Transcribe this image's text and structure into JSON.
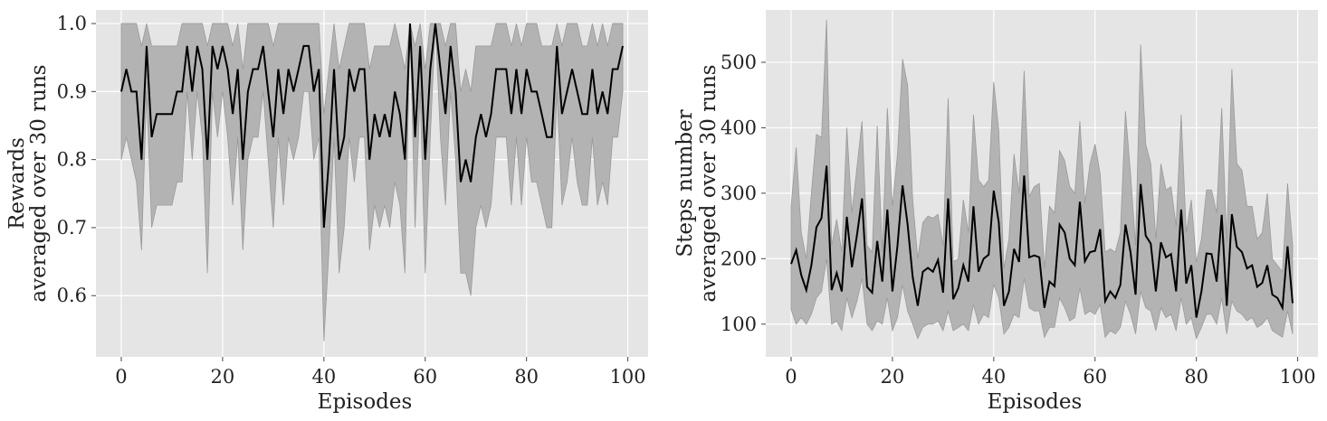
{
  "chart_data": [
    {
      "type": "line",
      "xlabel": "Episodes",
      "ylabel_lines": [
        "Rewards",
        "averaged over 30 runs"
      ],
      "xlim": [
        -5,
        104
      ],
      "ylim": [
        0.51,
        1.02
      ],
      "xticks": [
        0,
        20,
        40,
        60,
        80,
        100
      ],
      "yticks": [
        0.6,
        0.7,
        0.8,
        0.9,
        1.0
      ],
      "ytick_labels": [
        "0.6",
        "0.7",
        "0.8",
        "0.9",
        "1.0"
      ],
      "grid": true,
      "series": [
        {
          "x": [
            0,
            1,
            2,
            3,
            4,
            5,
            6,
            7,
            8,
            9,
            10,
            11,
            12,
            13,
            14,
            15,
            16,
            17,
            18,
            19,
            20,
            21,
            22,
            23,
            24,
            25,
            26,
            27,
            28,
            29,
            30,
            31,
            32,
            33,
            34,
            35,
            36,
            37,
            38,
            39,
            40,
            41,
            42,
            43,
            44,
            45,
            46,
            47,
            48,
            49,
            50,
            51,
            52,
            53,
            54,
            55,
            56,
            57,
            58,
            59,
            60,
            61,
            62,
            63,
            64,
            65,
            66,
            67,
            68,
            69,
            70,
            71,
            72,
            73,
            74,
            75,
            76,
            77,
            78,
            79,
            80,
            81,
            82,
            83,
            84,
            85,
            86,
            87,
            88,
            89,
            90,
            91,
            92,
            93,
            94,
            95,
            96,
            97,
            98,
            99
          ],
          "mean": [
            0.9,
            0.933,
            0.9,
            0.9,
            0.8,
            0.967,
            0.833,
            0.867,
            0.867,
            0.867,
            0.867,
            0.9,
            0.9,
            0.967,
            0.9,
            0.967,
            0.933,
            0.8,
            0.967,
            0.933,
            0.967,
            0.933,
            0.867,
            0.933,
            0.8,
            0.9,
            0.933,
            0.933,
            0.967,
            0.9,
            0.833,
            0.933,
            0.867,
            0.933,
            0.9,
            0.933,
            0.967,
            0.967,
            0.9,
            0.933,
            0.7,
            0.8,
            0.933,
            0.8,
            0.833,
            0.933,
            0.9,
            0.933,
            0.933,
            0.8,
            0.867,
            0.833,
            0.867,
            0.833,
            0.9,
            0.867,
            0.8,
            1.0,
            0.833,
            0.967,
            0.8,
            0.933,
            1.0,
            0.933,
            0.867,
            0.967,
            0.9,
            0.767,
            0.8,
            0.767,
            0.833,
            0.867,
            0.833,
            0.867,
            0.933,
            0.933,
            0.933,
            0.867,
            0.933,
            0.867,
            0.933,
            0.9,
            0.9,
            0.867,
            0.833,
            0.833,
            0.967,
            0.867,
            0.9,
            0.933,
            0.9,
            0.867,
            0.867,
            0.933,
            0.867,
            0.9,
            0.867,
            0.933,
            0.933,
            0.967
          ],
          "upper": [
            1.0,
            1.0,
            1.0,
            1.0,
            0.967,
            1.0,
            0.967,
            0.967,
            0.967,
            0.967,
            0.967,
            0.967,
            1.0,
            1.0,
            1.0,
            1.0,
            1.0,
            0.967,
            1.0,
            1.0,
            1.0,
            1.0,
            0.967,
            1.0,
            0.933,
            1.0,
            1.0,
            1.0,
            1.0,
            1.0,
            0.967,
            1.0,
            1.0,
            1.0,
            1.0,
            1.0,
            1.0,
            1.0,
            1.0,
            1.0,
            0.867,
            0.933,
            1.0,
            0.933,
            0.967,
            1.0,
            1.0,
            1.0,
            1.0,
            0.933,
            0.967,
            0.967,
            0.967,
            0.967,
            1.0,
            0.967,
            0.933,
            1.0,
            0.967,
            1.0,
            0.933,
            1.0,
            1.0,
            1.0,
            0.967,
            1.0,
            1.0,
            0.9,
            0.933,
            0.9,
            0.967,
            0.967,
            0.967,
            0.967,
            1.0,
            1.0,
            1.0,
            0.967,
            1.0,
            0.967,
            1.0,
            1.0,
            1.0,
            0.967,
            0.967,
            0.967,
            1.0,
            0.967,
            1.0,
            1.0,
            1.0,
            0.967,
            0.967,
            1.0,
            0.967,
            1.0,
            0.967,
            1.0,
            1.0,
            1.0
          ],
          "lower": [
            0.8,
            0.833,
            0.8,
            0.767,
            0.667,
            0.9,
            0.7,
            0.733,
            0.733,
            0.733,
            0.733,
            0.767,
            0.767,
            0.9,
            0.8,
            0.9,
            0.833,
            0.633,
            0.9,
            0.833,
            0.9,
            0.833,
            0.733,
            0.833,
            0.667,
            0.8,
            0.833,
            0.833,
            0.9,
            0.8,
            0.7,
            0.833,
            0.733,
            0.833,
            0.8,
            0.833,
            0.9,
            0.9,
            0.8,
            0.833,
            0.533,
            0.667,
            0.833,
            0.633,
            0.7,
            0.833,
            0.767,
            0.833,
            0.833,
            0.667,
            0.733,
            0.7,
            0.733,
            0.7,
            0.767,
            0.733,
            0.633,
            1.0,
            0.7,
            0.9,
            0.633,
            0.833,
            1.0,
            0.833,
            0.733,
            0.9,
            0.8,
            0.633,
            0.633,
            0.6,
            0.7,
            0.733,
            0.7,
            0.733,
            0.833,
            0.833,
            0.833,
            0.733,
            0.833,
            0.733,
            0.833,
            0.767,
            0.767,
            0.733,
            0.7,
            0.7,
            0.9,
            0.733,
            0.767,
            0.833,
            0.767,
            0.733,
            0.733,
            0.833,
            0.733,
            0.767,
            0.733,
            0.833,
            0.833,
            0.9
          ]
        }
      ]
    },
    {
      "type": "line",
      "xlabel": "Episodes",
      "ylabel_lines": [
        "Steps number",
        "averaged over 30 runs"
      ],
      "xlim": [
        -5,
        104
      ],
      "ylim": [
        50,
        580
      ],
      "xticks": [
        0,
        20,
        40,
        60,
        80,
        100
      ],
      "yticks": [
        100,
        200,
        300,
        400,
        500
      ],
      "ytick_labels": [
        "100",
        "200",
        "300",
        "400",
        "500"
      ],
      "grid": true,
      "series": [
        {
          "x": [
            0,
            1,
            2,
            3,
            4,
            5,
            6,
            7,
            8,
            9,
            10,
            11,
            12,
            13,
            14,
            15,
            16,
            17,
            18,
            19,
            20,
            21,
            22,
            23,
            24,
            25,
            26,
            27,
            28,
            29,
            30,
            31,
            32,
            33,
            34,
            35,
            36,
            37,
            38,
            39,
            40,
            41,
            42,
            43,
            44,
            45,
            46,
            47,
            48,
            49,
            50,
            51,
            52,
            53,
            54,
            55,
            56,
            57,
            58,
            59,
            60,
            61,
            62,
            63,
            64,
            65,
            66,
            67,
            68,
            69,
            70,
            71,
            72,
            73,
            74,
            75,
            76,
            77,
            78,
            79,
            80,
            81,
            82,
            83,
            84,
            85,
            86,
            87,
            88,
            89,
            90,
            91,
            92,
            93,
            94,
            95,
            96,
            97,
            98,
            99
          ],
          "mean": [
            192,
            213,
            175,
            152,
            190,
            248,
            262,
            342,
            152,
            178,
            150,
            264,
            187,
            236,
            292,
            157,
            148,
            227,
            165,
            275,
            150,
            220,
            312,
            252,
            172,
            128,
            180,
            186,
            180,
            198,
            148,
            292,
            138,
            155,
            190,
            165,
            280,
            180,
            200,
            206,
            304,
            255,
            128,
            150,
            215,
            195,
            327,
            202,
            205,
            202,
            125,
            165,
            158,
            252,
            240,
            200,
            190,
            287,
            196,
            210,
            212,
            245,
            135,
            150,
            140,
            160,
            252,
            210,
            145,
            314,
            235,
            223,
            150,
            225,
            202,
            207,
            150,
            275,
            162,
            190,
            110,
            150,
            208,
            207,
            165,
            267,
            128,
            268,
            218,
            210,
            185,
            190,
            157,
            163,
            190,
            145,
            140,
            125,
            219,
            132
          ],
          "upper": [
            280,
            370,
            240,
            200,
            300,
            390,
            385,
            565,
            220,
            260,
            210,
            400,
            270,
            340,
            410,
            220,
            210,
            403,
            210,
            430,
            280,
            360,
            505,
            465,
            290,
            200,
            255,
            265,
            262,
            268,
            220,
            445,
            195,
            200,
            290,
            240,
            420,
            320,
            310,
            320,
            470,
            395,
            185,
            230,
            360,
            300,
            487,
            295,
            310,
            315,
            185,
            280,
            270,
            365,
            350,
            310,
            300,
            410,
            285,
            345,
            375,
            330,
            210,
            215,
            210,
            240,
            425,
            330,
            220,
            527,
            375,
            345,
            230,
            345,
            305,
            310,
            250,
            420,
            240,
            290,
            195,
            230,
            305,
            305,
            270,
            430,
            225,
            490,
            345,
            335,
            280,
            280,
            230,
            240,
            300,
            200,
            190,
            180,
            315,
            220
          ],
          "lower": [
            122,
            100,
            110,
            100,
            115,
            140,
            150,
            200,
            100,
            105,
            90,
            140,
            110,
            135,
            170,
            100,
            90,
            105,
            100,
            140,
            90,
            110,
            160,
            120,
            100,
            78,
            95,
            100,
            100,
            105,
            90,
            120,
            90,
            95,
            100,
            90,
            130,
            100,
            115,
            110,
            160,
            140,
            85,
            95,
            115,
            110,
            170,
            125,
            120,
            120,
            80,
            95,
            95,
            140,
            125,
            105,
            110,
            155,
            115,
            120,
            115,
            130,
            80,
            90,
            85,
            95,
            135,
            115,
            85,
            150,
            125,
            120,
            90,
            125,
            110,
            115,
            90,
            140,
            100,
            110,
            78,
            95,
            115,
            115,
            100,
            140,
            85,
            135,
            120,
            115,
            105,
            110,
            95,
            100,
            110,
            90,
            85,
            80,
            120,
            85
          ]
        }
      ]
    }
  ]
}
